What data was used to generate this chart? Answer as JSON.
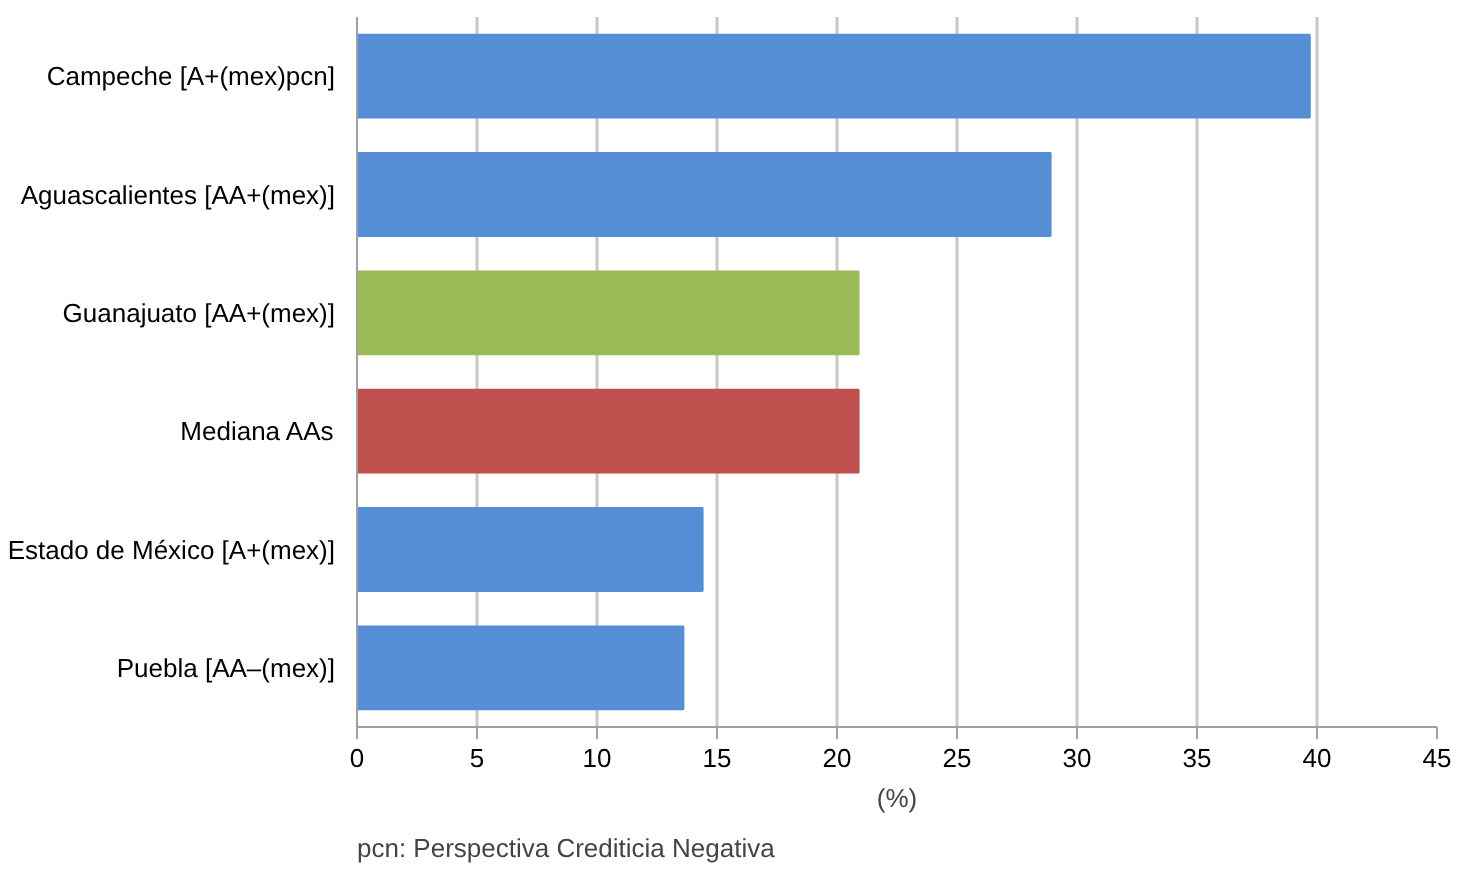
{
  "chart_data": {
    "type": "bar",
    "orientation": "horizontal",
    "xlabel": "(%)",
    "categories": [
      "Campeche [A+(mex)pcn]",
      "Aguascalientes [AA+(mex)]",
      "Guanajuato [AA+(mex)]",
      "Mediana AAs",
      "Estado de México [A+(mex)]",
      "Puebla [AA–(mex)]"
    ],
    "values": [
      39.7,
      28.9,
      20.9,
      20.9,
      14.4,
      13.6
    ],
    "colors": [
      "#558ed5",
      "#558ed5",
      "#9bbb59",
      "#c0504d",
      "#558ed5",
      "#558ed5"
    ],
    "xlim": [
      0,
      45
    ],
    "xticks": [
      0,
      5,
      10,
      15,
      20,
      25,
      30,
      35,
      40,
      45
    ],
    "grid": "x",
    "annotations": [
      "pcn: Perspectiva Crediticia Negativa"
    ]
  }
}
